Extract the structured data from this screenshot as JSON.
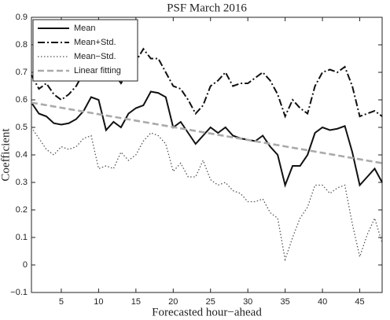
{
  "chart_data": {
    "type": "line",
    "title": "PSF March 2016",
    "xlabel": "Forecasted hour−ahead",
    "ylabel": "Coefficient",
    "x": [
      1,
      2,
      3,
      4,
      5,
      6,
      7,
      8,
      9,
      10,
      11,
      12,
      13,
      14,
      15,
      16,
      17,
      18,
      19,
      20,
      21,
      22,
      23,
      24,
      25,
      26,
      27,
      28,
      29,
      30,
      31,
      32,
      33,
      34,
      35,
      36,
      37,
      38,
      39,
      40,
      41,
      42,
      43,
      44,
      45,
      46,
      47,
      48
    ],
    "xlim": [
      1,
      48
    ],
    "xticks": [
      5,
      10,
      15,
      20,
      25,
      30,
      35,
      40,
      45
    ],
    "ylim": [
      -0.1,
      0.9
    ],
    "yticks": [
      {
        "value": -0.1,
        "label": "−0.1"
      },
      0,
      0.1,
      0.2,
      0.3,
      0.4,
      0.5,
      0.6,
      0.7,
      0.8,
      0.9
    ],
    "legend": "upper left",
    "series": [
      {
        "name": "Mean",
        "color": "#111111",
        "dash": "solid",
        "values": [
          0.59,
          0.55,
          0.54,
          0.515,
          0.51,
          0.515,
          0.53,
          0.56,
          0.61,
          0.6,
          0.49,
          0.52,
          0.5,
          0.55,
          0.57,
          0.58,
          0.63,
          0.625,
          0.61,
          0.5,
          0.52,
          0.48,
          0.44,
          0.47,
          0.5,
          0.48,
          0.5,
          0.47,
          0.46,
          0.455,
          0.45,
          0.47,
          0.43,
          0.4,
          0.29,
          0.36,
          0.36,
          0.4,
          0.48,
          0.5,
          0.49,
          0.495,
          0.505,
          0.41,
          0.29,
          0.32,
          0.35,
          0.3
        ]
      },
      {
        "name": "Mean+Std.",
        "color": "#111111",
        "dash": "dashdot",
        "values": [
          0.69,
          0.64,
          0.66,
          0.62,
          0.6,
          0.62,
          0.65,
          0.7,
          0.74,
          0.76,
          0.68,
          0.7,
          0.66,
          0.7,
          0.74,
          0.785,
          0.75,
          0.75,
          0.7,
          0.65,
          0.64,
          0.6,
          0.55,
          0.58,
          0.65,
          0.67,
          0.7,
          0.65,
          0.66,
          0.66,
          0.68,
          0.7,
          0.67,
          0.62,
          0.54,
          0.6,
          0.57,
          0.55,
          0.65,
          0.7,
          0.71,
          0.7,
          0.72,
          0.65,
          0.54,
          0.55,
          0.56,
          0.54
        ]
      },
      {
        "name": "Mean−Std.",
        "color": "#555555",
        "dash": "dotted",
        "values": [
          0.5,
          0.46,
          0.42,
          0.4,
          0.43,
          0.42,
          0.43,
          0.46,
          0.47,
          0.35,
          0.36,
          0.35,
          0.41,
          0.38,
          0.4,
          0.45,
          0.48,
          0.47,
          0.44,
          0.34,
          0.37,
          0.32,
          0.32,
          0.38,
          0.31,
          0.29,
          0.3,
          0.27,
          0.26,
          0.23,
          0.23,
          0.24,
          0.19,
          0.17,
          0.02,
          0.1,
          0.17,
          0.21,
          0.29,
          0.29,
          0.26,
          0.28,
          0.29,
          0.15,
          0.03,
          0.11,
          0.17,
          0.08
        ]
      },
      {
        "name": "Linear fitting",
        "color": "#aaaaaa",
        "dash": "dashed",
        "x": [
          1,
          48
        ],
        "values": [
          0.59,
          0.37
        ]
      }
    ]
  }
}
